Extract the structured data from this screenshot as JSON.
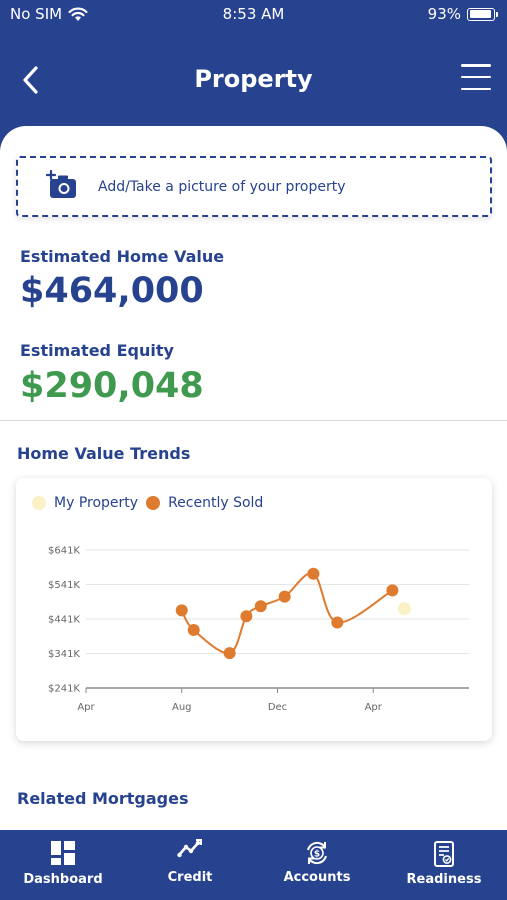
{
  "status_bar": {
    "carrier": "No SIM",
    "time": "8:53 AM",
    "battery": "93%",
    "battery_level": 0.93
  },
  "nav": {
    "title": "Property",
    "back_icon": "chevron-left-icon",
    "menu_icon": "hamburger-menu-icon"
  },
  "photo": {
    "label": "Add/Take a picture of your property",
    "icon": "add-camera-icon"
  },
  "home_value": {
    "label": "Estimated Home Value",
    "value": "$464,000"
  },
  "equity": {
    "label": "Estimated Equity",
    "value": "$290,048"
  },
  "trends": {
    "title": "Home Value Trends"
  },
  "chart_data": {
    "type": "line",
    "title": "",
    "xlabel": "",
    "ylabel": "",
    "legend_position": "top-left",
    "x_ticks": [
      "Apr",
      "Aug",
      "Dec",
      "Apr"
    ],
    "y_ticks": [
      "$641K",
      "$541K",
      "$441K",
      "$341K",
      "$241K"
    ],
    "y_tick_values": [
      641,
      541,
      441,
      341,
      241
    ],
    "ylim": [
      241,
      641
    ],
    "xlim": [
      0,
      16
    ],
    "grid": true,
    "series": [
      {
        "name": "My Property",
        "color": "#fbf1c6",
        "x": [
          13.3
        ],
        "y": [
          471
        ]
      },
      {
        "name": "Recently Sold",
        "color": "#df7b2e",
        "x": [
          4,
          4.5,
          6,
          6.7,
          7.3,
          8.3,
          9.5,
          10.5,
          12.8
        ],
        "y": [
          466,
          409,
          342,
          449,
          478,
          506,
          572,
          431,
          524
        ]
      }
    ]
  },
  "mortgages": {
    "title": "Related Mortgages"
  },
  "tabs": [
    {
      "label": "Dashboard",
      "icon": "dashboard-grid-icon"
    },
    {
      "label": "Credit",
      "icon": "trend-line-icon"
    },
    {
      "label": "Accounts",
      "icon": "dollar-sync-icon"
    },
    {
      "label": "Readiness",
      "icon": "checklist-document-icon"
    }
  ]
}
